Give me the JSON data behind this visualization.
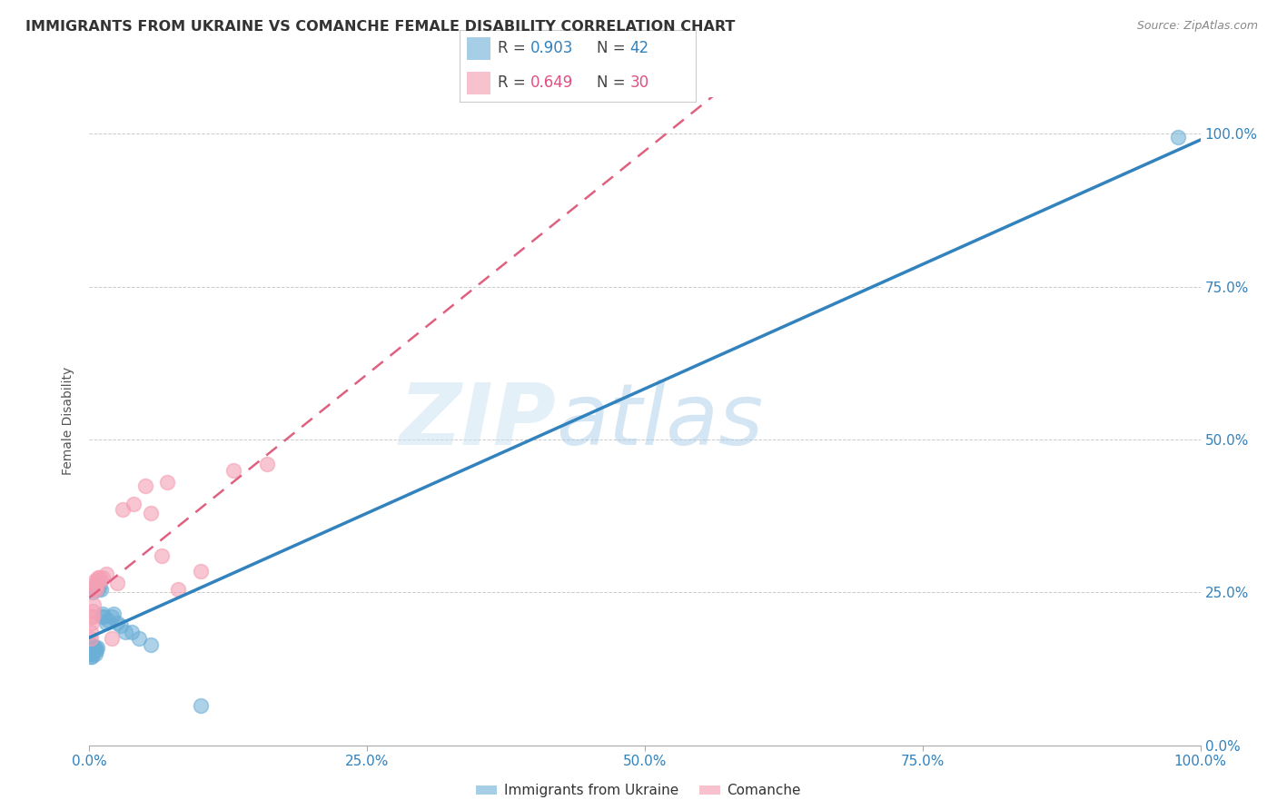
{
  "title": "IMMIGRANTS FROM UKRAINE VS COMANCHE FEMALE DISABILITY CORRELATION CHART",
  "source": "Source: ZipAtlas.com",
  "ylabel": "Female Disability",
  "legend1_r": "0.903",
  "legend1_n": "42",
  "legend2_r": "0.649",
  "legend2_n": "30",
  "ukraine_color": "#6baed6",
  "comanche_color": "#f4a0b5",
  "ukraine_line_color": "#3182bd",
  "comanche_line_color": "#e06080",
  "watermark_zip": "ZIP",
  "watermark_atlas": "atlas",
  "ukraine_scatter_x": [
    0.001,
    0.001,
    0.001,
    0.001,
    0.001,
    0.002,
    0.002,
    0.002,
    0.002,
    0.002,
    0.003,
    0.003,
    0.003,
    0.003,
    0.004,
    0.004,
    0.004,
    0.005,
    0.005,
    0.005,
    0.006,
    0.006,
    0.007,
    0.007,
    0.008,
    0.009,
    0.01,
    0.011,
    0.012,
    0.013,
    0.015,
    0.017,
    0.02,
    0.022,
    0.025,
    0.028,
    0.032,
    0.038,
    0.045,
    0.055,
    0.1,
    0.98
  ],
  "ukraine_scatter_y": [
    0.145,
    0.15,
    0.155,
    0.16,
    0.165,
    0.145,
    0.15,
    0.155,
    0.16,
    0.165,
    0.15,
    0.155,
    0.16,
    0.25,
    0.155,
    0.16,
    0.255,
    0.15,
    0.16,
    0.26,
    0.155,
    0.255,
    0.16,
    0.26,
    0.255,
    0.26,
    0.255,
    0.21,
    0.215,
    0.21,
    0.2,
    0.205,
    0.21,
    0.215,
    0.2,
    0.195,
    0.185,
    0.185,
    0.175,
    0.165,
    0.065,
    0.995
  ],
  "comanche_scatter_x": [
    0.001,
    0.001,
    0.002,
    0.002,
    0.003,
    0.003,
    0.004,
    0.004,
    0.005,
    0.005,
    0.006,
    0.006,
    0.007,
    0.008,
    0.009,
    0.01,
    0.012,
    0.015,
    0.02,
    0.025,
    0.03,
    0.04,
    0.05,
    0.055,
    0.065,
    0.07,
    0.08,
    0.1,
    0.13,
    0.16
  ],
  "comanche_scatter_y": [
    0.175,
    0.185,
    0.2,
    0.21,
    0.21,
    0.22,
    0.23,
    0.255,
    0.26,
    0.27,
    0.255,
    0.265,
    0.27,
    0.275,
    0.275,
    0.27,
    0.275,
    0.28,
    0.175,
    0.265,
    0.385,
    0.395,
    0.425,
    0.38,
    0.31,
    0.43,
    0.255,
    0.285,
    0.45,
    0.46
  ],
  "xlim": [
    0.0,
    1.0
  ],
  "ylim": [
    0.0,
    1.06
  ],
  "xtick_pos": [
    0.0,
    0.25,
    0.5,
    0.75,
    1.0
  ],
  "ytick_pos": [
    0.0,
    0.25,
    0.5,
    0.75,
    1.0
  ],
  "xticklabels": [
    "0.0%",
    "25.0%",
    "50.0%",
    "75.0%",
    "100.0%"
  ],
  "yticklabels": [
    "0.0%",
    "25.0%",
    "50.0%",
    "75.0%",
    "100.0%"
  ],
  "background_color": "#ffffff",
  "grid_color": "#cccccc"
}
